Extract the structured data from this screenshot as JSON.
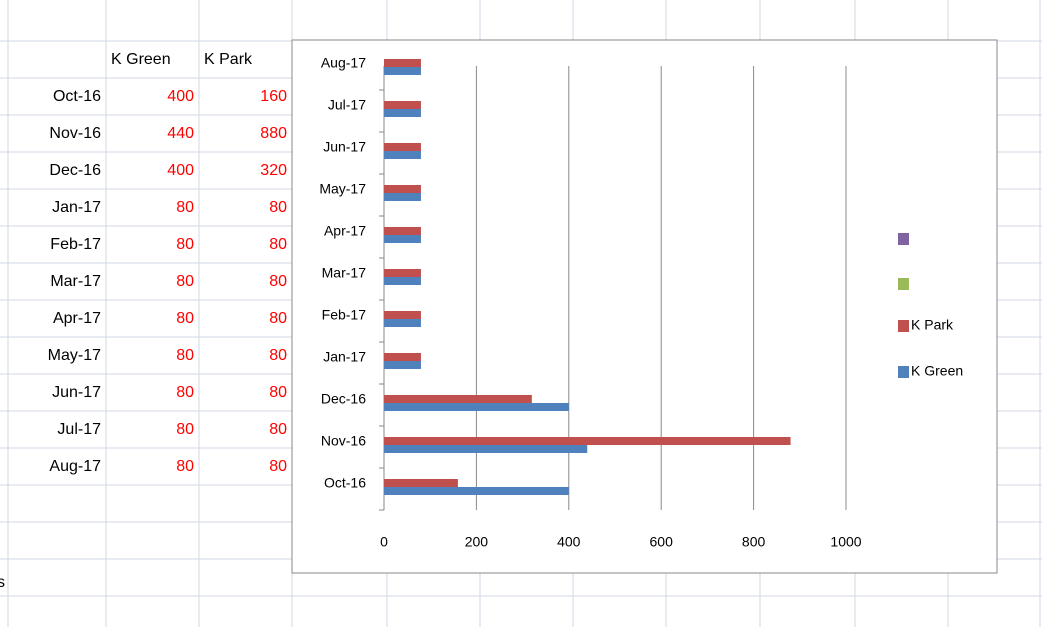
{
  "table": {
    "header": [
      "K Green",
      "K Park"
    ],
    "rows": [
      [
        "Oct-16",
        400,
        160
      ],
      [
        "Nov-16",
        440,
        880
      ],
      [
        "Dec-16",
        400,
        320
      ],
      [
        "Jan-17",
        80,
        80
      ],
      [
        "Feb-17",
        80,
        80
      ],
      [
        "Mar-17",
        80,
        80
      ],
      [
        "Apr-17",
        80,
        80
      ],
      [
        "May-17",
        80,
        80
      ],
      [
        "Jun-17",
        80,
        80
      ],
      [
        "Jul-17",
        80,
        80
      ],
      [
        "Aug-17",
        80,
        80
      ]
    ]
  },
  "fragment": "s",
  "chart_data": {
    "type": "barh",
    "categories": [
      "Oct-16",
      "Nov-16",
      "Dec-16",
      "Jan-17",
      "Feb-17",
      "Mar-17",
      "Apr-17",
      "May-17",
      "Jun-17",
      "Jul-17",
      "Aug-17"
    ],
    "series": [
      {
        "name": "K Green",
        "color": "#4f81bd",
        "values": [
          400,
          440,
          400,
          80,
          80,
          80,
          80,
          80,
          80,
          80,
          80
        ]
      },
      {
        "name": "K Park",
        "color": "#c0504d",
        "values": [
          160,
          880,
          320,
          80,
          80,
          80,
          80,
          80,
          80,
          80,
          80
        ]
      }
    ],
    "xlim": [
      0,
      1000
    ],
    "xticks": [
      0,
      200,
      400,
      600,
      800,
      1000
    ],
    "grid": true
  }
}
